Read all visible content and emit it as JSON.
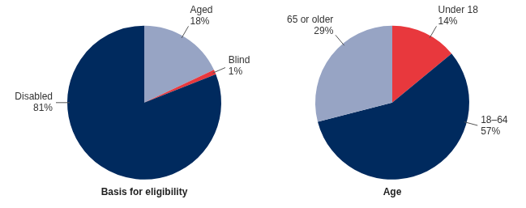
{
  "chart_data": [
    {
      "type": "pie",
      "title": "Basis for eligibility",
      "categories": [
        "Aged",
        "Blind",
        "Disabled"
      ],
      "values": [
        18,
        1,
        81
      ],
      "value_labels": [
        "18%",
        "1%",
        "81%"
      ],
      "colors": [
        "#97a4c4",
        "#e8383d",
        "#002a5e"
      ],
      "data_labels": true
    },
    {
      "type": "pie",
      "title": "Age",
      "categories": [
        "Under 18",
        "18–64",
        "65 or older"
      ],
      "values": [
        14,
        57,
        29
      ],
      "value_labels": [
        "14%",
        "57%",
        "29%"
      ],
      "colors": [
        "#e8383d",
        "#002a5e",
        "#97a4c4"
      ],
      "data_labels": true
    }
  ]
}
